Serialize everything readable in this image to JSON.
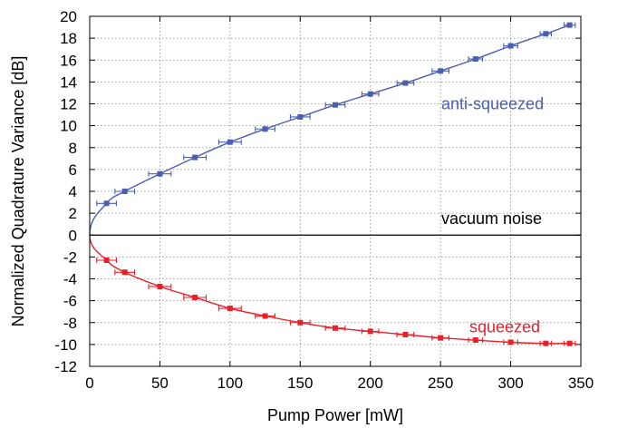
{
  "chart_data": {
    "type": "scatter",
    "xlabel": "Pump Power [mW]",
    "ylabel": "Normalized Quadrature Variance [dB]",
    "xlim": [
      0,
      350
    ],
    "ylim": [
      -12,
      20
    ],
    "xticks": [
      0,
      50,
      100,
      150,
      200,
      250,
      300,
      350
    ],
    "yticks": [
      -12,
      -10,
      -8,
      -6,
      -4,
      -2,
      0,
      2,
      4,
      6,
      8,
      10,
      12,
      14,
      16,
      18,
      20
    ],
    "grid": true,
    "legend": "none",
    "colors": {
      "anti": "#4a5fb0",
      "sq": "#e8202a",
      "ref": "#000000"
    },
    "series": [
      {
        "label": "anti-squeezed",
        "color": "#4a5fb0",
        "x": [
          12,
          25,
          50,
          75,
          100,
          125,
          150,
          175,
          200,
          225,
          250,
          275,
          300,
          325,
          342
        ],
        "y": [
          2.9,
          4.0,
          5.6,
          7.1,
          8.5,
          9.7,
          10.8,
          11.9,
          12.9,
          13.9,
          15.0,
          16.1,
          17.3,
          18.4,
          19.2
        ],
        "xerr": [
          7,
          7,
          8,
          8,
          8,
          7,
          7,
          7,
          6,
          6,
          6,
          5,
          5,
          4,
          4
        ]
      },
      {
        "label": "squeezed",
        "color": "#e8202a",
        "x": [
          12,
          25,
          50,
          75,
          100,
          125,
          150,
          175,
          200,
          225,
          250,
          275,
          300,
          325,
          342
        ],
        "y": [
          -2.3,
          -3.4,
          -4.7,
          -5.7,
          -6.7,
          -7.4,
          -8.0,
          -8.5,
          -8.8,
          -9.1,
          -9.4,
          -9.6,
          -9.8,
          -9.9,
          -9.9
        ],
        "xerr": [
          7,
          7,
          8,
          8,
          8,
          7,
          7,
          7,
          6,
          6,
          6,
          5,
          5,
          4,
          4
        ]
      }
    ],
    "reference_line": {
      "y": 0,
      "label": "vacuum noise"
    }
  }
}
